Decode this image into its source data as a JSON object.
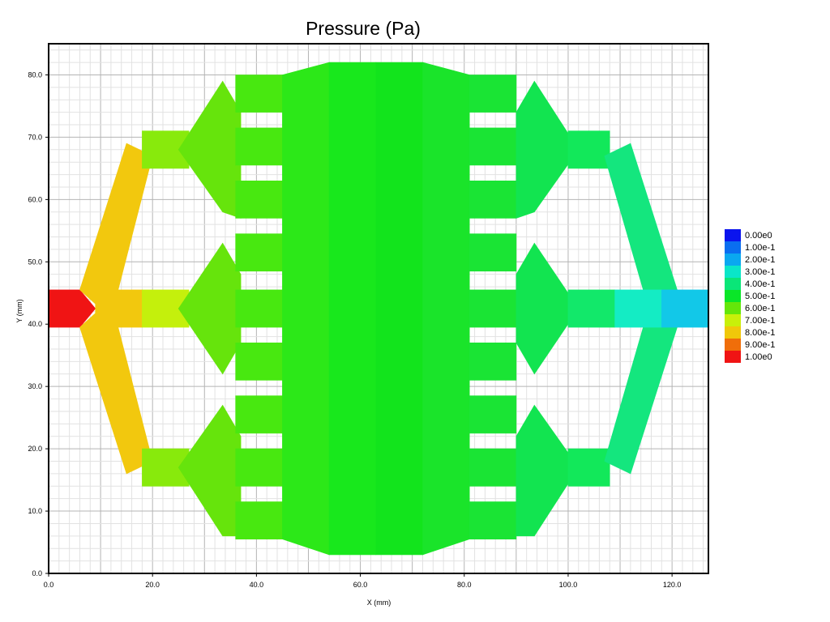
{
  "chart_data": {
    "type": "heatmap",
    "title": "Pressure (Pa)",
    "xlabel": "X (mm)",
    "ylabel": "Y (mm)",
    "xlim": [
      0,
      127
    ],
    "ylim": [
      0,
      85
    ],
    "x_ticks": [
      "0.0",
      "20.0",
      "40.0",
      "60.0",
      "80.0",
      "100.0",
      "120.0"
    ],
    "y_ticks": [
      "0.0",
      "10.0",
      "20.0",
      "30.0",
      "40.0",
      "50.0",
      "60.0",
      "70.0",
      "80.0"
    ],
    "grid": true,
    "legend_position": "right",
    "legend": [
      {
        "label": "0.00e0",
        "color": "#0a14ee"
      },
      {
        "label": "1.00e-1",
        "color": "#0a6ef0"
      },
      {
        "label": "2.00e-1",
        "color": "#0aa8f0"
      },
      {
        "label": "3.00e-1",
        "color": "#0ae6c8"
      },
      {
        "label": "4.00e-1",
        "color": "#0ae678"
      },
      {
        "label": "5.00e-1",
        "color": "#0ae628"
      },
      {
        "label": "6.00e-1",
        "color": "#64e60a"
      },
      {
        "label": "7.00e-1",
        "color": "#c8f00a"
      },
      {
        "label": "8.00e-1",
        "color": "#f0c80a"
      },
      {
        "label": "9.00e-1",
        "color": "#f06e0a"
      },
      {
        "label": "1.00e0",
        "color": "#f01414"
      }
    ],
    "regions": [
      {
        "name": "inlet",
        "color": "#f01414",
        "points": [
          [
            0,
            45.5
          ],
          [
            6,
            45.5
          ],
          [
            9,
            42.5
          ],
          [
            6,
            39.5
          ],
          [
            0,
            39.5
          ]
        ]
      },
      {
        "name": "left-upper-arm",
        "color": "#f2c80e",
        "points": [
          [
            6,
            45.5
          ],
          [
            15,
            69
          ],
          [
            20,
            67
          ],
          [
            12,
            41
          ]
        ]
      },
      {
        "name": "left-lower-arm",
        "color": "#f2c80e",
        "points": [
          [
            6,
            39.5
          ],
          [
            15,
            16
          ],
          [
            20,
            18
          ],
          [
            12,
            44
          ]
        ]
      },
      {
        "name": "left-mid-stub",
        "color": "#f2c80e",
        "points": [
          [
            9,
            45.5
          ],
          [
            18,
            45.5
          ],
          [
            18,
            39.5
          ],
          [
            9,
            39.5
          ]
        ]
      },
      {
        "name": "left-mid-branch",
        "color": "#c4f00c",
        "points": [
          [
            18,
            45.5
          ],
          [
            27,
            45.5
          ],
          [
            27,
            39.5
          ],
          [
            18,
            39.5
          ]
        ]
      },
      {
        "name": "left-top-branch",
        "color": "#88ea0c",
        "points": [
          [
            18,
            71
          ],
          [
            27,
            71
          ],
          [
            27,
            65
          ],
          [
            18,
            65
          ]
        ]
      },
      {
        "name": "left-bot-branch",
        "color": "#88ea0c",
        "points": [
          [
            18,
            20
          ],
          [
            27,
            20
          ],
          [
            27,
            14
          ],
          [
            18,
            14
          ]
        ]
      },
      {
        "name": "left-top-diamond",
        "color": "#66e40c",
        "points": [
          [
            25,
            68
          ],
          [
            33.5,
            79
          ],
          [
            37,
            74
          ],
          [
            37,
            57
          ],
          [
            33.5,
            58
          ],
          [
            25,
            68
          ]
        ]
      },
      {
        "name": "left-mid-diamond",
        "color": "#66e40c",
        "points": [
          [
            25,
            42.5
          ],
          [
            33.5,
            53
          ],
          [
            37,
            48
          ],
          [
            37,
            37
          ],
          [
            33.5,
            32
          ],
          [
            25,
            42.5
          ]
        ]
      },
      {
        "name": "left-bot-diamond",
        "color": "#66e40c",
        "points": [
          [
            25,
            17
          ],
          [
            33.5,
            27
          ],
          [
            37,
            22
          ],
          [
            37,
            6
          ],
          [
            33.5,
            6
          ],
          [
            25,
            17
          ]
        ]
      },
      {
        "name": "left-channel-1",
        "color": "#48e810",
        "points": [
          [
            36,
            80
          ],
          [
            45,
            80
          ],
          [
            45,
            74
          ],
          [
            36,
            74
          ]
        ]
      },
      {
        "name": "left-channel-2",
        "color": "#48e810",
        "points": [
          [
            36,
            71.5
          ],
          [
            45,
            71.5
          ],
          [
            45,
            65.5
          ],
          [
            36,
            65.5
          ]
        ]
      },
      {
        "name": "left-channel-3",
        "color": "#48e810",
        "points": [
          [
            36,
            63
          ],
          [
            45,
            63
          ],
          [
            45,
            57
          ],
          [
            36,
            57
          ]
        ]
      },
      {
        "name": "left-channel-4",
        "color": "#48e810",
        "points": [
          [
            36,
            54.5
          ],
          [
            45,
            54.5
          ],
          [
            45,
            48.5
          ],
          [
            36,
            48.5
          ]
        ]
      },
      {
        "name": "left-channel-5",
        "color": "#48e810",
        "points": [
          [
            36,
            45.5
          ],
          [
            45,
            45.5
          ],
          [
            45,
            39.5
          ],
          [
            36,
            39.5
          ]
        ]
      },
      {
        "name": "left-channel-6",
        "color": "#48e810",
        "points": [
          [
            36,
            37
          ],
          [
            45,
            37
          ],
          [
            45,
            31
          ],
          [
            36,
            31
          ]
        ]
      },
      {
        "name": "left-channel-7",
        "color": "#48e810",
        "points": [
          [
            36,
            28.5
          ],
          [
            45,
            28.5
          ],
          [
            45,
            22.5
          ],
          [
            36,
            22.5
          ]
        ]
      },
      {
        "name": "left-channel-8",
        "color": "#48e810",
        "points": [
          [
            36,
            20
          ],
          [
            45,
            20
          ],
          [
            45,
            14
          ],
          [
            36,
            14
          ]
        ]
      },
      {
        "name": "left-channel-9",
        "color": "#48e810",
        "points": [
          [
            36,
            11.5
          ],
          [
            45,
            11.5
          ],
          [
            45,
            5.5
          ],
          [
            36,
            5.5
          ]
        ]
      },
      {
        "name": "left-funnel",
        "color": "#2ce818",
        "points": [
          [
            45,
            80
          ],
          [
            54,
            82
          ],
          [
            54,
            3
          ],
          [
            45,
            5.5
          ]
        ]
      },
      {
        "name": "center-chamber-left",
        "color": "#18e81c",
        "points": [
          [
            54,
            82
          ],
          [
            63,
            82
          ],
          [
            63,
            3
          ],
          [
            54,
            3
          ]
        ]
      },
      {
        "name": "center-chamber-right",
        "color": "#12e41c",
        "points": [
          [
            63,
            82
          ],
          [
            72,
            82
          ],
          [
            72,
            3
          ],
          [
            63,
            3
          ]
        ]
      },
      {
        "name": "right-funnel",
        "color": "#1ae42a",
        "points": [
          [
            72,
            82
          ],
          [
            81,
            80
          ],
          [
            81,
            5.5
          ],
          [
            72,
            3
          ]
        ]
      },
      {
        "name": "right-channel-1",
        "color": "#1ae434",
        "points": [
          [
            81,
            80
          ],
          [
            90,
            80
          ],
          [
            90,
            74
          ],
          [
            81,
            74
          ]
        ]
      },
      {
        "name": "right-channel-2",
        "color": "#1ae434",
        "points": [
          [
            81,
            71.5
          ],
          [
            90,
            71.5
          ],
          [
            90,
            65.5
          ],
          [
            81,
            65.5
          ]
        ]
      },
      {
        "name": "right-channel-3",
        "color": "#1ae434",
        "points": [
          [
            81,
            63
          ],
          [
            90,
            63
          ],
          [
            90,
            57
          ],
          [
            81,
            57
          ]
        ]
      },
      {
        "name": "right-channel-4",
        "color": "#1ae434",
        "points": [
          [
            81,
            54.5
          ],
          [
            90,
            54.5
          ],
          [
            90,
            48.5
          ],
          [
            81,
            48.5
          ]
        ]
      },
      {
        "name": "right-channel-5",
        "color": "#1ae434",
        "points": [
          [
            81,
            45.5
          ],
          [
            90,
            45.5
          ],
          [
            90,
            39.5
          ],
          [
            81,
            39.5
          ]
        ]
      },
      {
        "name": "right-channel-6",
        "color": "#1ae434",
        "points": [
          [
            81,
            37
          ],
          [
            90,
            37
          ],
          [
            90,
            31
          ],
          [
            81,
            31
          ]
        ]
      },
      {
        "name": "right-channel-7",
        "color": "#1ae434",
        "points": [
          [
            81,
            28.5
          ],
          [
            90,
            28.5
          ],
          [
            90,
            22.5
          ],
          [
            81,
            22.5
          ]
        ]
      },
      {
        "name": "right-channel-8",
        "color": "#1ae434",
        "points": [
          [
            81,
            20
          ],
          [
            90,
            20
          ],
          [
            90,
            14
          ],
          [
            81,
            14
          ]
        ]
      },
      {
        "name": "right-channel-9",
        "color": "#1ae434",
        "points": [
          [
            81,
            11.5
          ],
          [
            90,
            11.5
          ],
          [
            90,
            5.5
          ],
          [
            81,
            5.5
          ]
        ]
      },
      {
        "name": "right-top-diamond",
        "color": "#12e450",
        "points": [
          [
            90,
            74
          ],
          [
            93.5,
            79
          ],
          [
            102,
            68
          ],
          [
            93.5,
            58
          ],
          [
            90,
            57
          ]
        ]
      },
      {
        "name": "right-mid-diamond",
        "color": "#12e450",
        "points": [
          [
            90,
            48
          ],
          [
            93.5,
            53
          ],
          [
            102,
            42.5
          ],
          [
            93.5,
            32
          ],
          [
            90,
            37
          ]
        ]
      },
      {
        "name": "right-bot-diamond",
        "color": "#12e450",
        "points": [
          [
            90,
            22
          ],
          [
            93.5,
            27
          ],
          [
            102,
            17
          ],
          [
            93.5,
            6
          ],
          [
            90,
            6
          ]
        ]
      },
      {
        "name": "right-top-branch",
        "color": "#12e85a",
        "points": [
          [
            100,
            71
          ],
          [
            108,
            71
          ],
          [
            108,
            65
          ],
          [
            100,
            65
          ]
        ]
      },
      {
        "name": "right-mid-branch",
        "color": "#12e86a",
        "points": [
          [
            100,
            45.5
          ],
          [
            109,
            45.5
          ],
          [
            109,
            39.5
          ],
          [
            100,
            39.5
          ]
        ]
      },
      {
        "name": "right-bot-branch",
        "color": "#12e85a",
        "points": [
          [
            100,
            20
          ],
          [
            108,
            20
          ],
          [
            108,
            14
          ],
          [
            100,
            14
          ]
        ]
      },
      {
        "name": "right-upper-arm",
        "color": "#14e67e",
        "points": [
          [
            107,
            67
          ],
          [
            112,
            69
          ],
          [
            121,
            45.5
          ],
          [
            116,
            41
          ]
        ]
      },
      {
        "name": "right-lower-arm",
        "color": "#14e67e",
        "points": [
          [
            107,
            18
          ],
          [
            112,
            16
          ],
          [
            121,
            39.5
          ],
          [
            116,
            44
          ]
        ]
      },
      {
        "name": "right-mid-stub",
        "color": "#14ecc4",
        "points": [
          [
            109,
            45.5
          ],
          [
            118,
            45.5
          ],
          [
            118,
            39.5
          ],
          [
            109,
            39.5
          ]
        ]
      },
      {
        "name": "outlet",
        "color": "#12c8e8",
        "points": [
          [
            118,
            45.5
          ],
          [
            127,
            45.5
          ],
          [
            127,
            39.5
          ],
          [
            118,
            39.5
          ]
        ]
      }
    ]
  }
}
